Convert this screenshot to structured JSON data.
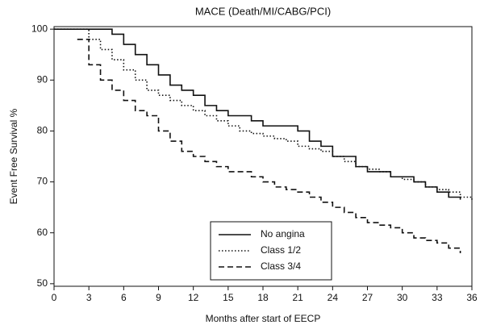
{
  "chart_data": {
    "type": "line",
    "step": true,
    "title": "MACE (Death/MI/CABG/PCI)",
    "x_label": "Months after start of EECP",
    "y_label": "Event Free Survival %",
    "x": [
      0,
      1,
      2,
      3,
      4,
      5,
      6,
      7,
      8,
      9,
      10,
      11,
      12,
      13,
      14,
      15,
      16,
      17,
      18,
      19,
      20,
      21,
      22,
      23,
      24,
      25,
      26,
      27,
      28,
      29,
      30,
      31,
      32,
      33,
      34,
      35,
      36
    ],
    "series": [
      {
        "name": "No angina",
        "color": "#111111",
        "style": "solid",
        "values": [
          100,
          100,
          100,
          100,
          100,
          99,
          97,
          95,
          93,
          91,
          89,
          88,
          87,
          85,
          84,
          83,
          83,
          82,
          81,
          81,
          81,
          80,
          78,
          77,
          75,
          75,
          73,
          72,
          72,
          71,
          71,
          70,
          69,
          68,
          67,
          66.5,
          null
        ]
      },
      {
        "name": "Class 1/2",
        "color": "#111111",
        "style": "dotted",
        "values": [
          100,
          100,
          100,
          98,
          96,
          94,
          92,
          90,
          88,
          87,
          86,
          85,
          84,
          83,
          82,
          81,
          80,
          79.5,
          79,
          78.5,
          78,
          77,
          76.5,
          76,
          75,
          74,
          73,
          72.5,
          72,
          71,
          70.5,
          70,
          69,
          68.5,
          68,
          67,
          66.5
        ]
      },
      {
        "name": "Class 3/4",
        "color": "#111111",
        "style": "dashed",
        "values": [
          null,
          null,
          98,
          93,
          90,
          88,
          86,
          84,
          83,
          80,
          78,
          76,
          75,
          74,
          73,
          72,
          72,
          71,
          70,
          69,
          68.5,
          68,
          67,
          66,
          65,
          64,
          63,
          62,
          61.5,
          61,
          60,
          59,
          58.5,
          58,
          57,
          56,
          null
        ]
      }
    ],
    "xlim": [
      0,
      36
    ],
    "ylim": [
      49.5,
      100.5
    ],
    "xticks": [
      0,
      3,
      6,
      9,
      12,
      15,
      18,
      21,
      24,
      27,
      30,
      33,
      36
    ],
    "yticks": [
      50,
      60,
      70,
      80,
      90,
      100
    ],
    "legend": "lower center"
  }
}
